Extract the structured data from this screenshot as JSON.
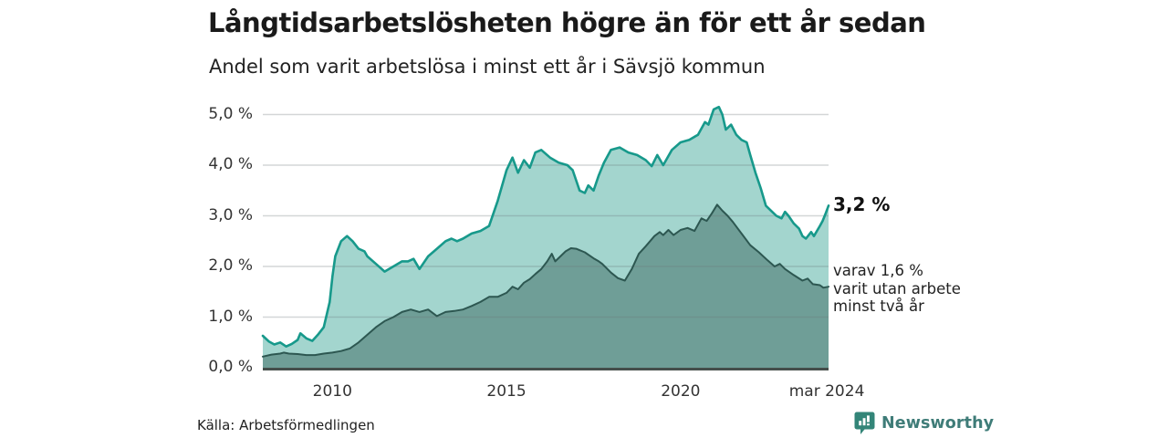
{
  "header": {
    "title": "Långtidsarbetslösheten högre än för ett år sedan",
    "subtitle": "Andel som varit arbetslösa i minst ett år i Sävsjö kommun"
  },
  "chart_data": {
    "type": "area",
    "title": "Långtidsarbetslösheten högre än för ett år sedan",
    "subtitle": "Andel som varit arbetslösa i minst ett år i Sävsjö kommun",
    "xlabel": "",
    "ylabel": "",
    "grid": true,
    "legend": "none",
    "x_axis": {
      "range": [
        2008.0,
        2024.25
      ],
      "ticks": [
        {
          "label": "2010",
          "year": 2010
        },
        {
          "label": "2015",
          "year": 2015
        },
        {
          "label": "2020",
          "year": 2020
        },
        {
          "label": "mar 2024",
          "year": 2024.2
        }
      ]
    },
    "y_axis": {
      "range": [
        0,
        5
      ],
      "ticks": [
        {
          "label": "0,0 %",
          "value": 0
        },
        {
          "label": "1,0 %",
          "value": 1
        },
        {
          "label": "2,0 %",
          "value": 2
        },
        {
          "label": "3,0 %",
          "value": 3
        },
        {
          "label": "4,0 %",
          "value": 4
        },
        {
          "label": "5,0 %",
          "value": 5
        }
      ]
    },
    "series": [
      {
        "name": "Arbetslösa minst ett år",
        "latest_label": "3,2 %",
        "line_color": "#17998b",
        "fill_color": "#a3d5ce",
        "points": [
          [
            2008.0,
            0.63
          ],
          [
            2008.17,
            0.52
          ],
          [
            2008.33,
            0.46
          ],
          [
            2008.5,
            0.5
          ],
          [
            2008.67,
            0.42
          ],
          [
            2008.83,
            0.47
          ],
          [
            2009.0,
            0.55
          ],
          [
            2009.08,
            0.68
          ],
          [
            2009.25,
            0.58
          ],
          [
            2009.42,
            0.53
          ],
          [
            2009.58,
            0.65
          ],
          [
            2009.75,
            0.8
          ],
          [
            2009.92,
            1.3
          ],
          [
            2010.0,
            1.8
          ],
          [
            2010.08,
            2.2
          ],
          [
            2010.25,
            2.5
          ],
          [
            2010.42,
            2.6
          ],
          [
            2010.58,
            2.5
          ],
          [
            2010.75,
            2.35
          ],
          [
            2010.92,
            2.3
          ],
          [
            2011.0,
            2.2
          ],
          [
            2011.25,
            2.05
          ],
          [
            2011.5,
            1.9
          ],
          [
            2011.75,
            2.0
          ],
          [
            2012.0,
            2.1
          ],
          [
            2012.17,
            2.1
          ],
          [
            2012.33,
            2.15
          ],
          [
            2012.5,
            1.95
          ],
          [
            2012.75,
            2.2
          ],
          [
            2013.0,
            2.35
          ],
          [
            2013.25,
            2.5
          ],
          [
            2013.42,
            2.55
          ],
          [
            2013.58,
            2.5
          ],
          [
            2013.75,
            2.55
          ],
          [
            2014.0,
            2.65
          ],
          [
            2014.25,
            2.7
          ],
          [
            2014.5,
            2.8
          ],
          [
            2014.75,
            3.3
          ],
          [
            2015.0,
            3.9
          ],
          [
            2015.17,
            4.15
          ],
          [
            2015.33,
            3.85
          ],
          [
            2015.5,
            4.1
          ],
          [
            2015.67,
            3.95
          ],
          [
            2015.83,
            4.25
          ],
          [
            2016.0,
            4.3
          ],
          [
            2016.25,
            4.15
          ],
          [
            2016.5,
            4.05
          ],
          [
            2016.75,
            4.0
          ],
          [
            2016.9,
            3.9
          ],
          [
            2017.1,
            3.5
          ],
          [
            2017.25,
            3.45
          ],
          [
            2017.35,
            3.6
          ],
          [
            2017.5,
            3.5
          ],
          [
            2017.65,
            3.8
          ],
          [
            2017.8,
            4.05
          ],
          [
            2018.0,
            4.3
          ],
          [
            2018.25,
            4.35
          ],
          [
            2018.5,
            4.25
          ],
          [
            2018.75,
            4.2
          ],
          [
            2019.0,
            4.1
          ],
          [
            2019.17,
            3.98
          ],
          [
            2019.33,
            4.2
          ],
          [
            2019.5,
            4.0
          ],
          [
            2019.75,
            4.3
          ],
          [
            2020.0,
            4.45
          ],
          [
            2020.25,
            4.5
          ],
          [
            2020.5,
            4.6
          ],
          [
            2020.7,
            4.85
          ],
          [
            2020.8,
            4.8
          ],
          [
            2020.95,
            5.1
          ],
          [
            2021.1,
            5.15
          ],
          [
            2021.2,
            5.0
          ],
          [
            2021.3,
            4.7
          ],
          [
            2021.45,
            4.8
          ],
          [
            2021.6,
            4.6
          ],
          [
            2021.75,
            4.5
          ],
          [
            2021.9,
            4.45
          ],
          [
            2022.0,
            4.2
          ],
          [
            2022.15,
            3.85
          ],
          [
            2022.3,
            3.55
          ],
          [
            2022.45,
            3.2
          ],
          [
            2022.6,
            3.1
          ],
          [
            2022.75,
            3.0
          ],
          [
            2022.9,
            2.95
          ],
          [
            2023.0,
            3.08
          ],
          [
            2023.1,
            3.0
          ],
          [
            2023.25,
            2.85
          ],
          [
            2023.4,
            2.75
          ],
          [
            2023.5,
            2.6
          ],
          [
            2023.6,
            2.55
          ],
          [
            2023.75,
            2.68
          ],
          [
            2023.83,
            2.6
          ],
          [
            2024.0,
            2.8
          ],
          [
            2024.08,
            2.9
          ],
          [
            2024.17,
            3.05
          ],
          [
            2024.25,
            3.2
          ]
        ]
      },
      {
        "name": "Utan arbete minst två år",
        "latest_label": "1,6 %",
        "line_color": "#2d5751",
        "fill_color": "#6f9e97",
        "points": [
          [
            2008.0,
            0.22
          ],
          [
            2008.25,
            0.26
          ],
          [
            2008.5,
            0.28
          ],
          [
            2008.6,
            0.3
          ],
          [
            2008.75,
            0.28
          ],
          [
            2009.0,
            0.27
          ],
          [
            2009.25,
            0.25
          ],
          [
            2009.5,
            0.25
          ],
          [
            2009.75,
            0.28
          ],
          [
            2010.0,
            0.3
          ],
          [
            2010.25,
            0.33
          ],
          [
            2010.5,
            0.38
          ],
          [
            2010.75,
            0.5
          ],
          [
            2011.0,
            0.65
          ],
          [
            2011.25,
            0.8
          ],
          [
            2011.5,
            0.92
          ],
          [
            2011.75,
            1.0
          ],
          [
            2012.0,
            1.1
          ],
          [
            2012.25,
            1.15
          ],
          [
            2012.5,
            1.1
          ],
          [
            2012.75,
            1.15
          ],
          [
            2013.0,
            1.02
          ],
          [
            2013.25,
            1.1
          ],
          [
            2013.5,
            1.12
          ],
          [
            2013.75,
            1.15
          ],
          [
            2014.0,
            1.22
          ],
          [
            2014.25,
            1.3
          ],
          [
            2014.5,
            1.4
          ],
          [
            2014.75,
            1.4
          ],
          [
            2015.0,
            1.48
          ],
          [
            2015.17,
            1.6
          ],
          [
            2015.33,
            1.55
          ],
          [
            2015.5,
            1.68
          ],
          [
            2015.67,
            1.75
          ],
          [
            2015.83,
            1.85
          ],
          [
            2016.0,
            1.95
          ],
          [
            2016.17,
            2.1
          ],
          [
            2016.3,
            2.25
          ],
          [
            2016.4,
            2.1
          ],
          [
            2016.55,
            2.2
          ],
          [
            2016.7,
            2.3
          ],
          [
            2016.85,
            2.36
          ],
          [
            2017.0,
            2.35
          ],
          [
            2017.25,
            2.28
          ],
          [
            2017.5,
            2.16
          ],
          [
            2017.65,
            2.1
          ],
          [
            2017.75,
            2.05
          ],
          [
            2018.0,
            1.88
          ],
          [
            2018.2,
            1.77
          ],
          [
            2018.4,
            1.72
          ],
          [
            2018.6,
            1.95
          ],
          [
            2018.8,
            2.25
          ],
          [
            2019.0,
            2.4
          ],
          [
            2019.25,
            2.6
          ],
          [
            2019.4,
            2.68
          ],
          [
            2019.5,
            2.62
          ],
          [
            2019.65,
            2.72
          ],
          [
            2019.8,
            2.62
          ],
          [
            2020.0,
            2.72
          ],
          [
            2020.2,
            2.76
          ],
          [
            2020.4,
            2.7
          ],
          [
            2020.6,
            2.95
          ],
          [
            2020.75,
            2.9
          ],
          [
            2020.9,
            3.05
          ],
          [
            2021.05,
            3.22
          ],
          [
            2021.2,
            3.1
          ],
          [
            2021.35,
            3.0
          ],
          [
            2021.5,
            2.88
          ],
          [
            2021.75,
            2.65
          ],
          [
            2022.0,
            2.42
          ],
          [
            2022.25,
            2.28
          ],
          [
            2022.5,
            2.12
          ],
          [
            2022.7,
            2.0
          ],
          [
            2022.85,
            2.05
          ],
          [
            2023.0,
            1.95
          ],
          [
            2023.25,
            1.83
          ],
          [
            2023.5,
            1.72
          ],
          [
            2023.65,
            1.76
          ],
          [
            2023.8,
            1.65
          ],
          [
            2024.0,
            1.63
          ],
          [
            2024.1,
            1.58
          ],
          [
            2024.25,
            1.6
          ]
        ]
      }
    ],
    "colors": {
      "gridline": "rgba(108,118,122,0.3)",
      "axis_line": "#454e4b"
    }
  },
  "annotations": {
    "latest_total": "3,2 %",
    "sub_line1": "varav 1,6 %",
    "sub_line2": "varit utan arbete",
    "sub_line3": "minst två år"
  },
  "footer": {
    "source": "Källa: Arbetsförmedlingen",
    "brand": "Newsworthy",
    "brand_icon_color": "#338578",
    "brand_text_color": "#3f7c78"
  }
}
